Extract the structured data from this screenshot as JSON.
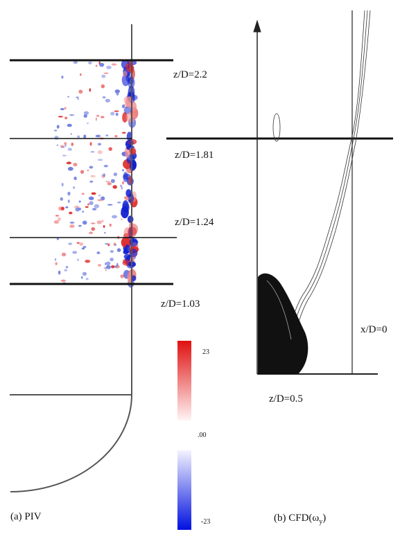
{
  "panel_a": {
    "levels": [
      "z/D=2.2",
      "z/D=1.81",
      "z/D=1.24",
      "z/D=1.03"
    ],
    "caption": "(a) PIV"
  },
  "colorbar": {
    "max": "23",
    "mid": ".00",
    "min": "-23"
  },
  "panel_b": {
    "x_label": "x/D=0",
    "z_label": "z/D=0.5",
    "caption": {
      "text": "(b) CFD(ω",
      "sub": "y",
      "end": ")"
    }
  }
}
